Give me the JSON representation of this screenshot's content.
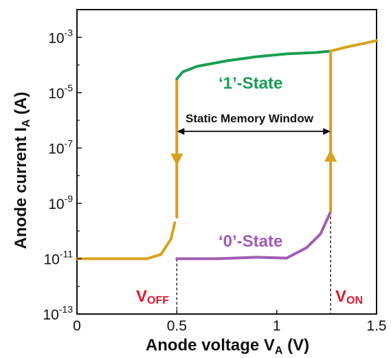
{
  "chart_data": {
    "type": "line",
    "xlabel": "Anode voltage V",
    "xlabel_sub": "A",
    "xlabel_unit": " (V)",
    "ylabel": "Anode current I",
    "ylabel_sub": "A",
    "ylabel_unit": " (A)",
    "xlim": [
      0,
      1.5
    ],
    "ylim_log10": [
      -13,
      -2
    ],
    "log_y": true,
    "x_ticks": [
      {
        "value": 0,
        "label": "0"
      },
      {
        "value": 0.5,
        "label": "0.5"
      },
      {
        "value": 1,
        "label": "1"
      },
      {
        "value": 1.5,
        "label": "1.5"
      }
    ],
    "y_ticks": [
      {
        "exp": -3,
        "base": "10",
        "sup": "-3"
      },
      {
        "exp": -5,
        "base": "10",
        "sup": "-5"
      },
      {
        "exp": -7,
        "base": "10",
        "sup": "-7"
      },
      {
        "exp": -9,
        "base": "10",
        "sup": "-9"
      },
      {
        "exp": -11,
        "base": "10",
        "sup": "-11"
      },
      {
        "exp": -13,
        "base": "10",
        "sup": "-13"
      }
    ],
    "series": [
      {
        "color": "#d8a21a",
        "x": [
          0,
          0.35,
          0.42,
          0.47,
          0.49
        ],
        "log10_y": [
          -11,
          -11,
          -10.85,
          -10.3,
          -9.7
        ]
      },
      {
        "color": "#d8a21a",
        "x": [
          0.5,
          0.5
        ],
        "log10_y": [
          -4.5,
          -9.5
        ]
      },
      {
        "color": "#1a9e54",
        "x": [
          0.5,
          0.53,
          0.6,
          0.75,
          0.9,
          1.05,
          1.2,
          1.27
        ],
        "log10_y": [
          -4.5,
          -4.25,
          -4.05,
          -3.85,
          -3.7,
          -3.6,
          -3.55,
          -3.5
        ]
      },
      {
        "color": "#a05cb4",
        "x": [
          0.5,
          0.7,
          0.9,
          1.05,
          1.15,
          1.22,
          1.27
        ],
        "log10_y": [
          -11,
          -11,
          -10.95,
          -10.98,
          -10.6,
          -10.1,
          -9.3
        ]
      },
      {
        "color": "#d8a21a",
        "x": [
          1.27,
          1.27
        ],
        "log10_y": [
          -9.3,
          -3.5
        ]
      },
      {
        "color": "#d8a21a",
        "x": [
          1.27,
          1.35,
          1.45,
          1.5
        ],
        "log10_y": [
          -3.5,
          -3.35,
          -3.2,
          -3.12
        ]
      }
    ],
    "voff": 0.5,
    "von": 1.27,
    "annotations": {
      "state1": "‘1’-State",
      "state0": "‘0’-State",
      "window": "Static Memory Window",
      "voff_main": "V",
      "voff_sub": "OFF",
      "von_main": "V",
      "von_sub": "ON"
    },
    "colors": {
      "gold": "#d8a21a",
      "green": "#1a9e54",
      "purple": "#a05cb4",
      "red": "#e0182d",
      "axis": "#111111"
    }
  }
}
